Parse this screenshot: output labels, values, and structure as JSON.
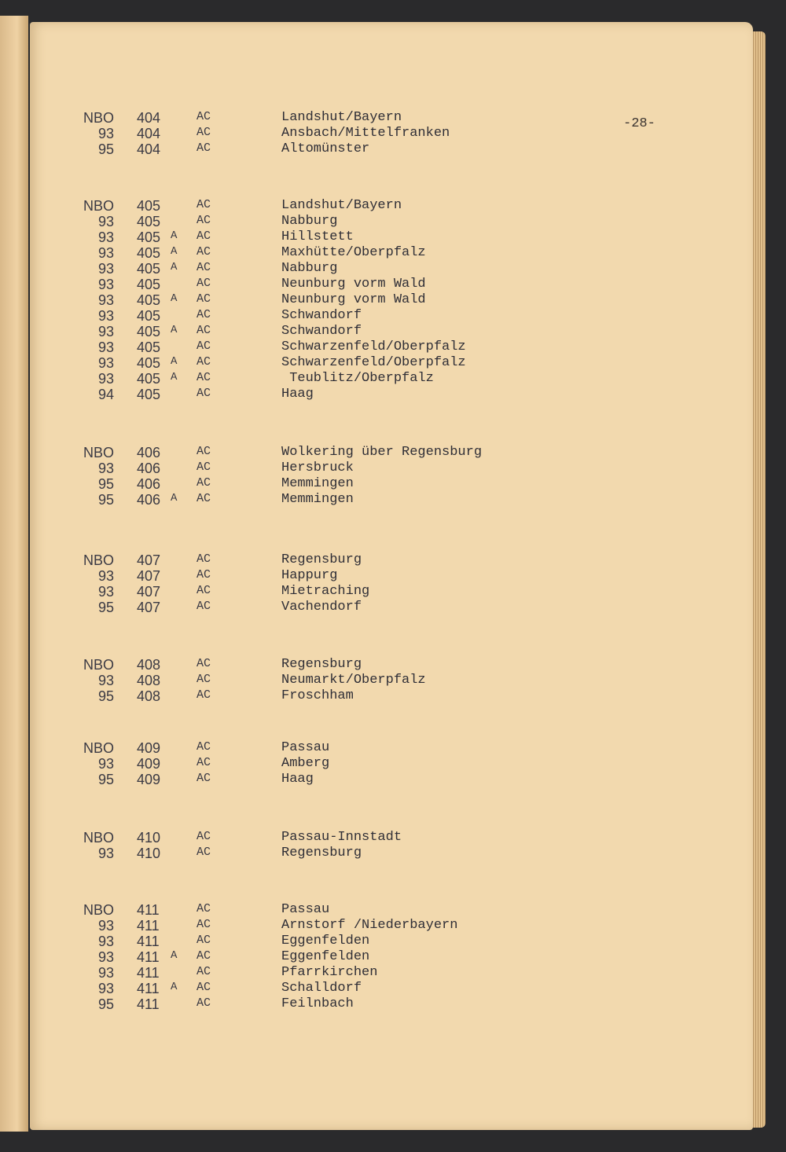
{
  "page_number": "-28-",
  "groups": [
    {
      "rows": [
        [
          "NBO",
          "404",
          "",
          "AC",
          "Landshut/Bayern"
        ],
        [
          "93",
          "404",
          "",
          "AC",
          "Ansbach/Mittelfranken"
        ],
        [
          "95",
          "404",
          "",
          "AC",
          "Altomünster"
        ]
      ]
    },
    {
      "rows": [
        [
          "NBO",
          "405",
          "",
          "AC",
          "Landshut/Bayern"
        ],
        [
          "93",
          "405",
          "",
          "AC",
          "Nabburg"
        ],
        [
          "93",
          "405",
          "A",
          "AC",
          "Hillstett"
        ],
        [
          "93",
          "405",
          "A",
          "AC",
          "Maxhütte/Oberpfalz"
        ],
        [
          "93",
          "405",
          "A",
          "AC",
          "Nabburg"
        ],
        [
          "93",
          "405",
          "",
          "AC",
          "Neunburg vorm Wald"
        ],
        [
          "93",
          "405",
          "A",
          "AC",
          "Neunburg vorm Wald"
        ],
        [
          "93",
          "405",
          "",
          "AC",
          "Schwandorf"
        ],
        [
          "93",
          "405",
          "A",
          "AC",
          "Schwandorf"
        ],
        [
          "93",
          "405",
          "",
          "AC",
          "Schwarzenfeld/Oberpfalz"
        ],
        [
          "93",
          "405",
          "A",
          "AC",
          "Schwarzenfeld/Oberpfalz"
        ],
        [
          "93",
          "405",
          "A",
          "AC",
          " Teublitz/Oberpfalz"
        ],
        [
          "94",
          "405",
          "",
          "AC",
          "Haag"
        ]
      ]
    },
    {
      "rows": [
        [
          "NBO",
          "406",
          "",
          "AC",
          "Wolkering über Regensburg"
        ],
        [
          "93",
          "406",
          "",
          "AC",
          "Hersbruck"
        ],
        [
          "95",
          "406",
          "",
          "AC",
          "Memmingen"
        ],
        [
          "95",
          "406",
          "A",
          "AC",
          "Memmingen"
        ]
      ]
    },
    {
      "rows": [
        [
          "NBO",
          "407",
          "",
          "AC",
          "Regensburg"
        ],
        [
          "93",
          "407",
          "",
          "AC",
          "Happurg"
        ],
        [
          "93",
          "407",
          "",
          "AC",
          "Mietraching"
        ],
        [
          "95",
          "407",
          "",
          "AC",
          "Vachendorf"
        ]
      ]
    },
    {
      "rows": [
        [
          "NBO",
          "408",
          "",
          "AC",
          "Regensburg"
        ],
        [
          "93",
          "408",
          "",
          "AC",
          "Neumarkt/Oberpfalz"
        ],
        [
          "95",
          "408",
          "",
          "AC",
          "Froschham"
        ]
      ]
    },
    {
      "rows": [
        [
          "NBO",
          "409",
          "",
          "AC",
          "Passau"
        ],
        [
          "93",
          "409",
          "",
          "AC",
          "Amberg"
        ],
        [
          "95",
          "409",
          "",
          "AC",
          "Haag"
        ]
      ]
    },
    {
      "rows": [
        [
          "NBO",
          "410",
          "",
          "AC",
          "Passau-Innstadt"
        ],
        [
          "93",
          "410",
          "",
          "AC",
          "Regensburg"
        ]
      ]
    },
    {
      "rows": [
        [
          "NBO",
          "411",
          "",
          "AC",
          "Passau"
        ],
        [
          "93",
          "411",
          "",
          "AC",
          "Arnstorf /Niederbayern"
        ],
        [
          "93",
          "411",
          "",
          "AC",
          "Eggenfelden"
        ],
        [
          "93",
          "411",
          "A",
          "AC",
          "Eggenfelden"
        ],
        [
          "93",
          "411",
          "",
          "AC",
          "Pfarrkirchen"
        ],
        [
          "93",
          "411",
          "A",
          "AC",
          "Schalldorf"
        ],
        [
          "95",
          "411",
          "",
          "AC",
          "Feilnbach"
        ]
      ]
    }
  ]
}
